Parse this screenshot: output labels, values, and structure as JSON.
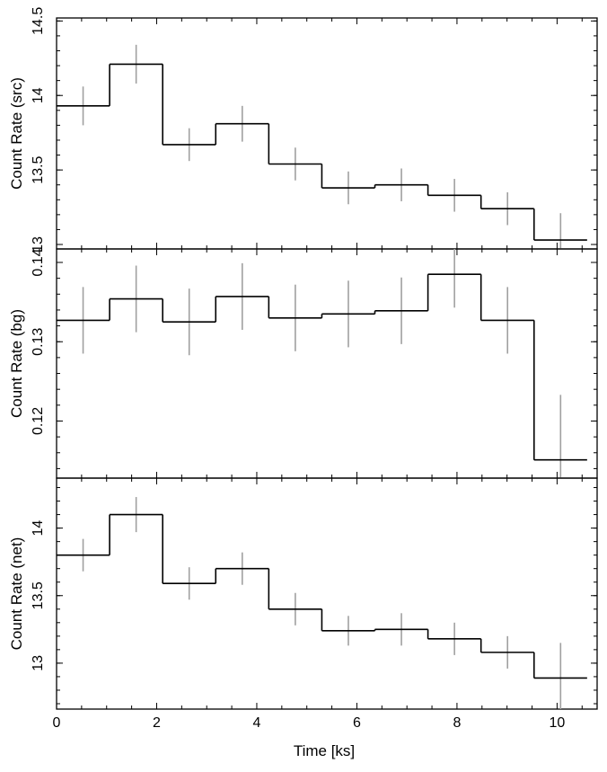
{
  "chart_data": [
    {
      "type": "line",
      "style": "step-histogram with error bars",
      "ylabel": "Count Rate (src)",
      "xlim": [
        0,
        10.8
      ],
      "ylim": [
        12.97,
        14.52
      ],
      "yticks": [
        13,
        13.5,
        14,
        14.5
      ],
      "ytick_labels": [
        "13",
        "13.5",
        "14",
        "14.5"
      ],
      "x_edges": [
        0,
        1.06,
        2.12,
        3.18,
        4.24,
        5.3,
        6.36,
        7.42,
        8.48,
        9.54,
        10.6
      ],
      "x_centers": [
        0.53,
        1.59,
        2.65,
        3.71,
        4.77,
        5.83,
        6.89,
        7.95,
        9.01,
        10.07
      ],
      "values": [
        13.93,
        14.21,
        13.67,
        13.81,
        13.54,
        13.38,
        13.4,
        13.33,
        13.24,
        13.03
      ],
      "errors": [
        0.13,
        0.13,
        0.11,
        0.12,
        0.11,
        0.11,
        0.11,
        0.11,
        0.11,
        0.18
      ],
      "grid": false
    },
    {
      "type": "line",
      "style": "step-histogram with error bars",
      "ylabel": "Count Rate (bg)",
      "xlim": [
        0,
        10.8
      ],
      "ylim": [
        0.1128,
        0.1417
      ],
      "yticks": [
        0.12,
        0.13,
        0.14
      ],
      "ytick_labels": [
        "0.12",
        "0.13",
        "0.14"
      ],
      "x_edges": [
        0,
        1.06,
        2.12,
        3.18,
        4.24,
        5.3,
        6.36,
        7.42,
        8.48,
        9.54,
        10.6
      ],
      "x_centers": [
        0.53,
        1.59,
        2.65,
        3.71,
        4.77,
        5.83,
        6.89,
        7.95,
        9.01,
        10.07
      ],
      "values": [
        0.1327,
        0.1354,
        0.1325,
        0.1357,
        0.133,
        0.1335,
        0.1339,
        0.1385,
        0.1327,
        0.1151
      ],
      "errors": [
        0.0042,
        0.0042,
        0.0042,
        0.0042,
        0.0042,
        0.0042,
        0.0042,
        0.0042,
        0.0042,
        0.0082
      ],
      "grid": false
    },
    {
      "type": "line",
      "style": "step-histogram with error bars",
      "ylabel": "Count Rate (net)",
      "xlabel": "Time [ks]",
      "xlim": [
        0,
        10.8
      ],
      "ylim": [
        12.66,
        14.37
      ],
      "yticks": [
        13,
        13.5,
        14
      ],
      "ytick_labels": [
        "13",
        "13.5",
        "14"
      ],
      "xticks": [
        0,
        2,
        4,
        6,
        8,
        10
      ],
      "xtick_labels": [
        "0",
        "2",
        "4",
        "6",
        "8",
        "10"
      ],
      "x_edges": [
        0,
        1.06,
        2.12,
        3.18,
        4.24,
        5.3,
        6.36,
        7.42,
        8.48,
        9.54,
        10.6
      ],
      "x_centers": [
        0.53,
        1.59,
        2.65,
        3.71,
        4.77,
        5.83,
        6.89,
        7.95,
        9.01,
        10.07
      ],
      "values": [
        13.8,
        14.1,
        13.59,
        13.7,
        13.4,
        13.24,
        13.25,
        13.18,
        13.08,
        12.89
      ],
      "errors": [
        0.12,
        0.13,
        0.12,
        0.12,
        0.12,
        0.11,
        0.12,
        0.12,
        0.12,
        0.26
      ],
      "grid": false
    }
  ],
  "colors": {
    "step_line": "#000000",
    "error_bar": "#a0a0a0",
    "frame": "#000000",
    "background": "#ffffff"
  }
}
